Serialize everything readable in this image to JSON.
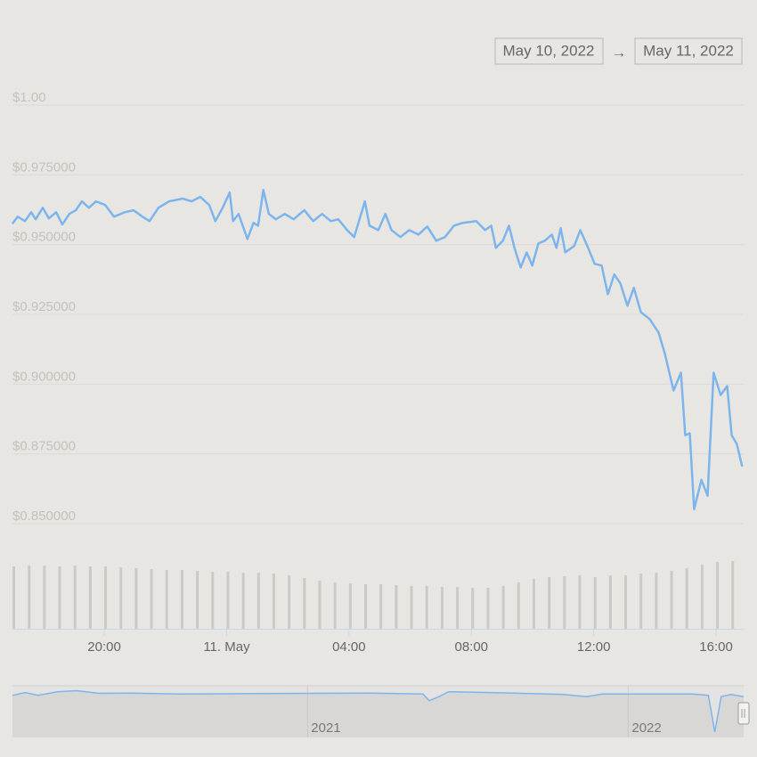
{
  "range": {
    "from": "May 10, 2022",
    "arrow": "→",
    "to": "May 11, 2022"
  },
  "chart_data": [
    {
      "type": "line",
      "color": "#7cb5ec",
      "grid": true,
      "x": [
        17.0,
        17.17,
        17.41,
        17.61,
        17.76,
        17.99,
        18.19,
        18.43,
        18.63,
        18.86,
        19.07,
        19.27,
        19.5,
        19.73,
        20.03,
        20.32,
        20.67,
        20.96,
        21.25,
        21.48,
        21.77,
        22.12,
        22.56,
        22.85,
        23.14,
        23.43,
        23.63,
        23.87,
        24.1,
        24.21,
        24.39,
        24.68,
        24.88,
        25.03,
        25.2,
        25.38,
        25.61,
        25.9,
        26.19,
        26.54,
        26.83,
        27.12,
        27.41,
        27.65,
        27.94,
        28.17,
        28.52,
        28.67,
        28.96,
        29.19,
        29.39,
        29.68,
        29.97,
        30.27,
        30.56,
        30.85,
        31.14,
        31.43,
        31.72,
        32.16,
        32.45,
        32.65,
        32.8,
        33.03,
        33.23,
        33.41,
        33.61,
        33.81,
        33.99,
        34.19,
        34.4,
        34.63,
        34.78,
        34.92,
        35.07,
        35.36,
        35.56,
        35.79,
        36.03,
        36.26,
        36.46,
        36.67,
        36.87,
        37.1,
        37.31,
        37.54,
        37.83,
        38.12,
        38.32,
        38.61,
        38.85,
        38.99,
        39.14,
        39.28,
        39.52,
        39.72,
        39.92,
        40.15,
        40.36,
        40.51,
        40.68,
        40.85
      ],
      "values": [
        0.9575,
        0.96,
        0.9584,
        0.9616,
        0.9591,
        0.9632,
        0.9594,
        0.9616,
        0.9572,
        0.961,
        0.9623,
        0.9655,
        0.9632,
        0.9655,
        0.9642,
        0.96,
        0.9616,
        0.9623,
        0.96,
        0.9584,
        0.9632,
        0.9655,
        0.9665,
        0.9655,
        0.9671,
        0.9642,
        0.9584,
        0.9632,
        0.9687,
        0.9584,
        0.961,
        0.952,
        0.9578,
        0.9568,
        0.9696,
        0.961,
        0.9591,
        0.961,
        0.9591,
        0.9623,
        0.9584,
        0.961,
        0.9584,
        0.9591,
        0.9552,
        0.9527,
        0.9655,
        0.9568,
        0.9552,
        0.961,
        0.9552,
        0.9527,
        0.9552,
        0.9536,
        0.9565,
        0.9514,
        0.9527,
        0.9568,
        0.9578,
        0.9584,
        0.9552,
        0.9568,
        0.9488,
        0.9514,
        0.9568,
        0.9488,
        0.9418,
        0.9472,
        0.9425,
        0.9504,
        0.9514,
        0.9536,
        0.9488,
        0.9559,
        0.9472,
        0.9495,
        0.9552,
        0.9495,
        0.9431,
        0.9425,
        0.9322,
        0.9393,
        0.9361,
        0.9281,
        0.9345,
        0.9258,
        0.9233,
        0.9185,
        0.9111,
        0.8977,
        0.9041,
        0.8817,
        0.8824,
        0.8552,
        0.8657,
        0.86,
        0.9041,
        0.8961,
        0.8993,
        0.8817,
        0.8785,
        0.8705
      ],
      "xlim": [
        17,
        40.9
      ],
      "ylim": [
        0.85,
        1.0
      ],
      "yticks": [
        {
          "value": 1.0,
          "label": "$1.00"
        },
        {
          "value": 0.975,
          "label": "$0.975000"
        },
        {
          "value": 0.95,
          "label": "$0.950000"
        },
        {
          "value": 0.925,
          "label": "$0.925000"
        },
        {
          "value": 0.9,
          "label": "$0.900000"
        },
        {
          "value": 0.875,
          "label": "$0.875000"
        },
        {
          "value": 0.85,
          "label": "$0.850000"
        }
      ]
    },
    {
      "type": "bar",
      "color": "#cdc9c4",
      "x": [
        17.0,
        17.5,
        18.0,
        18.5,
        19.0,
        19.5,
        20.0,
        20.5,
        21.0,
        21.5,
        22.0,
        22.5,
        23.0,
        23.5,
        24.0,
        24.5,
        25.0,
        25.5,
        26.0,
        26.5,
        27.0,
        27.5,
        28.0,
        28.5,
        29.0,
        29.5,
        30.0,
        30.5,
        31.0,
        31.5,
        32.0,
        32.5,
        33.0,
        33.5,
        34.0,
        34.5,
        35.0,
        35.5,
        36.0,
        36.5,
        37.0,
        37.5,
        38.0,
        38.5,
        39.0,
        39.5,
        40.0,
        40.5
      ],
      "values": [
        70,
        71,
        71,
        70,
        71,
        70,
        70,
        69,
        68,
        67,
        66,
        66,
        65,
        64,
        64,
        63,
        63,
        62,
        60,
        57,
        54,
        52,
        51,
        50,
        50,
        49,
        48,
        48,
        47,
        47,
        46,
        46,
        48,
        52,
        56,
        58,
        59,
        60,
        58,
        60,
        60,
        62,
        63,
        65,
        68,
        72,
        75,
        76
      ],
      "xlim": [
        17,
        40.9
      ],
      "ylim": [
        0,
        100
      ],
      "xticks": [
        {
          "value": 20,
          "label": "20:00"
        },
        {
          "value": 24,
          "label": "11. May"
        },
        {
          "value": 28,
          "label": "04:00"
        },
        {
          "value": 32,
          "label": "08:00"
        },
        {
          "value": 36,
          "label": "12:00"
        },
        {
          "value": 40,
          "label": "16:00"
        }
      ]
    },
    {
      "type": "area",
      "color": "#7cb5ec",
      "x": [
        2020.08,
        2020.12,
        2020.16,
        2020.22,
        2020.28,
        2020.35,
        2020.45,
        2020.6,
        2020.8,
        2021.0,
        2021.2,
        2021.36,
        2021.38,
        2021.41,
        2021.44,
        2021.6,
        2021.8,
        2021.87,
        2021.92,
        2022.0,
        2022.2,
        2022.25,
        2022.27,
        2022.29,
        2022.32,
        2022.36
      ],
      "values": [
        0.995,
        1.005,
        0.995,
        1.008,
        1.012,
        1.002,
        1.003,
        1.0,
        1.001,
        1.002,
        1.003,
        1.0,
        0.975,
        0.99,
        1.008,
        1.004,
        0.998,
        0.99,
        1.0,
        1.0,
        1.0,
        0.995,
        0.86,
        0.99,
        0.998,
        0.99
      ],
      "xlim": [
        2020.08,
        2022.36
      ],
      "ylim": [
        0.84,
        1.03
      ],
      "xticks": [
        2021,
        2022
      ]
    }
  ]
}
